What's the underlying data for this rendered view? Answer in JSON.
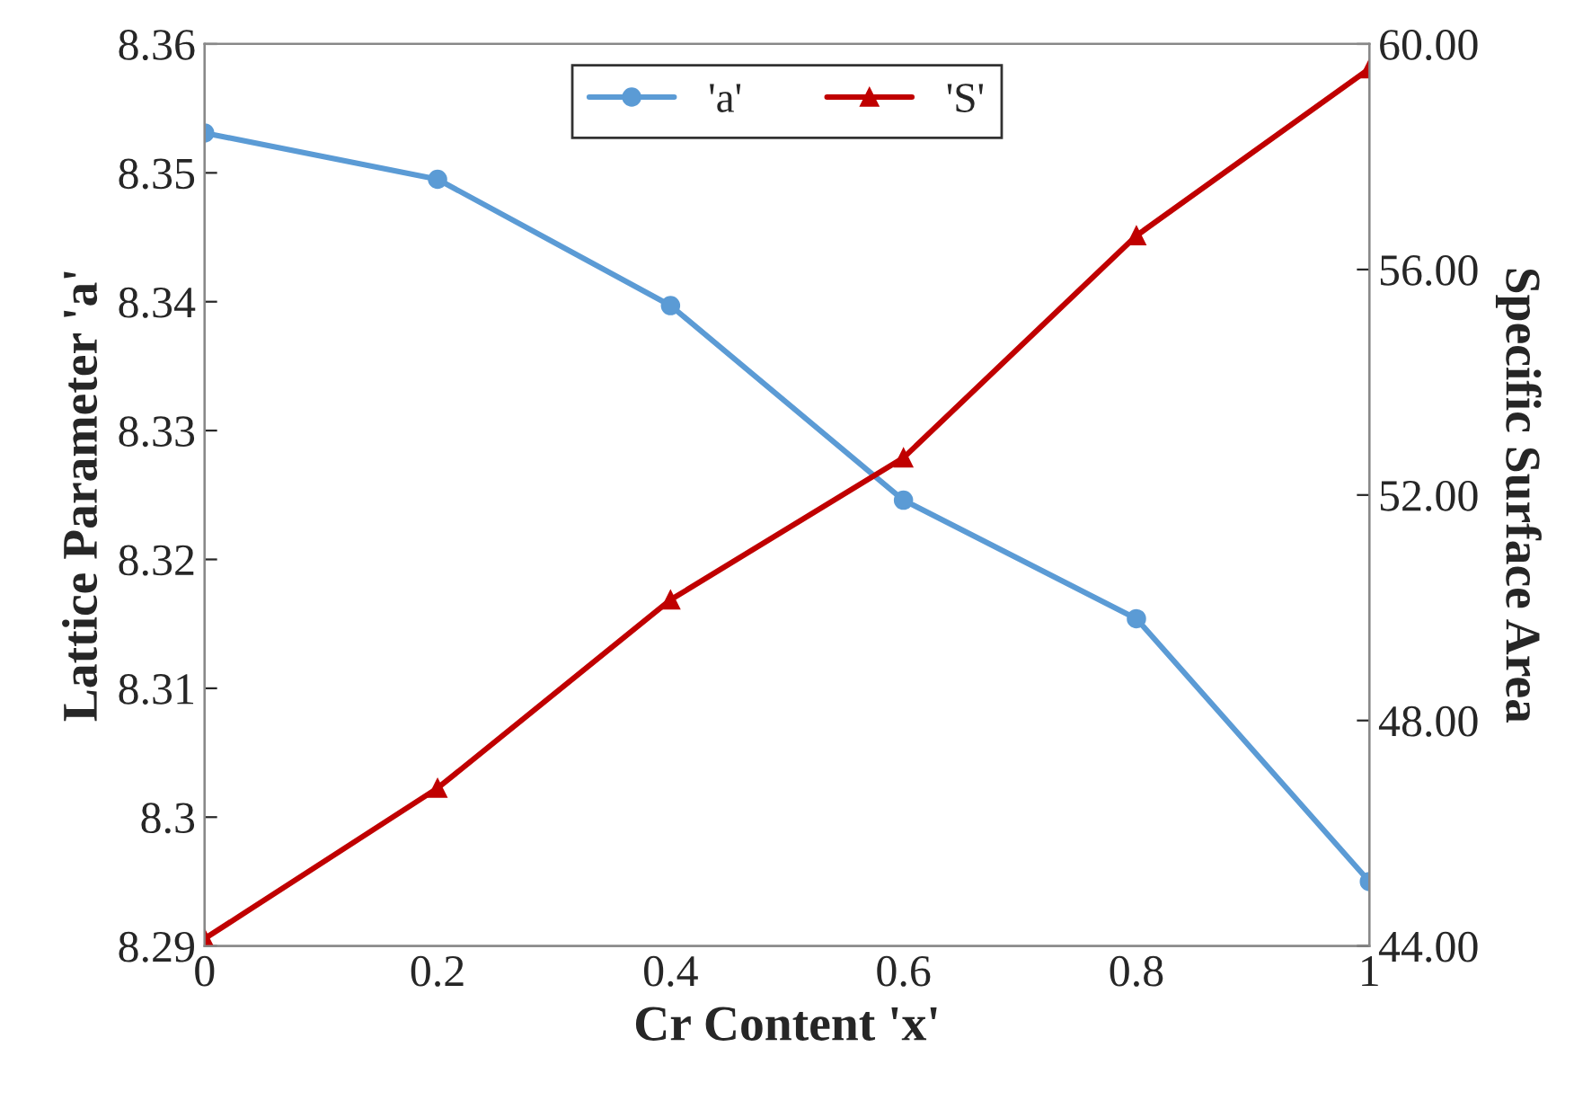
{
  "chart_data": {
    "type": "line",
    "xlabel": "Cr Content 'x'",
    "ylabel": "Lattice Parameter 'a'",
    "y2label": "Specific Surface Area",
    "x": [
      0,
      0.2,
      0.4,
      0.6,
      0.8,
      1
    ],
    "series": [
      {
        "name": "'a'",
        "color": "#5b9bd5",
        "marker": "circle",
        "values": [
          8.3531,
          8.3495,
          8.3397,
          8.3246,
          8.3154,
          8.295
        ]
      },
      {
        "name": "'S'",
        "color": "#c00000",
        "marker": "triangle",
        "axis": "y2",
        "values": [
          44.13,
          46.8,
          50.14,
          52.66,
          56.6,
          59.56
        ]
      }
    ],
    "xlim": [
      0,
      1
    ],
    "xticks": [
      0,
      0.2,
      0.4,
      0.6,
      0.8,
      1
    ],
    "ylim": [
      8.29,
      8.36
    ],
    "yticks": [
      8.29,
      8.3,
      8.31,
      8.32,
      8.33,
      8.34,
      8.35,
      8.36
    ],
    "y2lim": [
      44,
      60
    ],
    "y2ticks": [
      {
        "value": 44,
        "label": "44.00"
      },
      {
        "value": 48,
        "label": "48.00"
      },
      {
        "value": 52,
        "label": "52.00"
      },
      {
        "value": 56,
        "label": "56.00"
      },
      {
        "value": 60,
        "label": "60.00"
      }
    ],
    "legend": "top",
    "grid": false,
    "line_style": "solid"
  }
}
